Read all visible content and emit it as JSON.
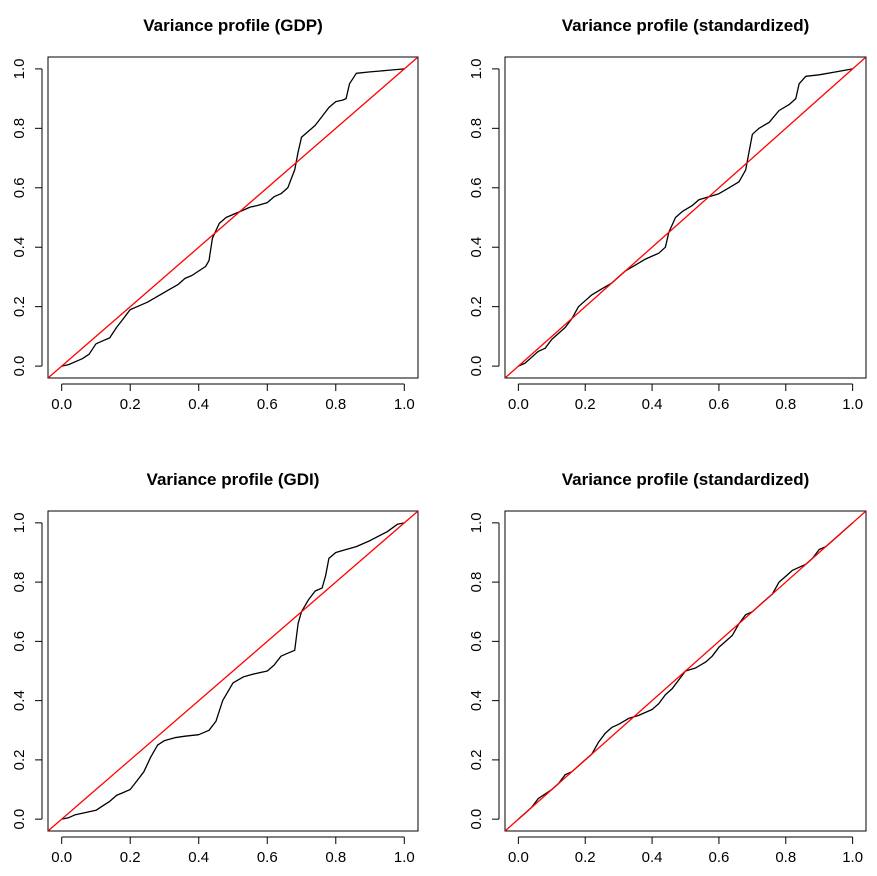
{
  "chart_data": [
    {
      "type": "line",
      "title": "Variance profile (GDP)",
      "xlabel": "",
      "ylabel": "",
      "xlim": [
        0,
        1
      ],
      "ylim": [
        0,
        1
      ],
      "x_ticks": [
        "0.0",
        "0.2",
        "0.4",
        "0.6",
        "0.8",
        "1.0"
      ],
      "y_ticks": [
        "0.0",
        "0.2",
        "0.4",
        "0.6",
        "0.8",
        "1.0"
      ],
      "grid": false,
      "series": [
        {
          "color": "#000000",
          "points": [
            [
              0,
              0
            ],
            [
              0.02,
              0.005
            ],
            [
              0.04,
              0.015
            ],
            [
              0.06,
              0.025
            ],
            [
              0.08,
              0.04
            ],
            [
              0.1,
              0.075
            ],
            [
              0.12,
              0.085
            ],
            [
              0.14,
              0.095
            ],
            [
              0.16,
              0.13
            ],
            [
              0.18,
              0.16
            ],
            [
              0.2,
              0.19
            ],
            [
              0.22,
              0.2
            ],
            [
              0.25,
              0.215
            ],
            [
              0.28,
              0.235
            ],
            [
              0.31,
              0.255
            ],
            [
              0.34,
              0.275
            ],
            [
              0.36,
              0.295
            ],
            [
              0.38,
              0.305
            ],
            [
              0.4,
              0.32
            ],
            [
              0.42,
              0.335
            ],
            [
              0.43,
              0.355
            ],
            [
              0.44,
              0.43
            ],
            [
              0.46,
              0.48
            ],
            [
              0.48,
              0.5
            ],
            [
              0.5,
              0.51
            ],
            [
              0.52,
              0.52
            ],
            [
              0.55,
              0.535
            ],
            [
              0.57,
              0.54
            ],
            [
              0.6,
              0.55
            ],
            [
              0.62,
              0.57
            ],
            [
              0.64,
              0.58
            ],
            [
              0.66,
              0.6
            ],
            [
              0.67,
              0.63
            ],
            [
              0.68,
              0.66
            ],
            [
              0.69,
              0.72
            ],
            [
              0.7,
              0.77
            ],
            [
              0.72,
              0.79
            ],
            [
              0.74,
              0.81
            ],
            [
              0.76,
              0.84
            ],
            [
              0.78,
              0.87
            ],
            [
              0.8,
              0.89
            ],
            [
              0.82,
              0.895
            ],
            [
              0.83,
              0.9
            ],
            [
              0.84,
              0.95
            ],
            [
              0.86,
              0.985
            ],
            [
              0.9,
              0.99
            ],
            [
              0.95,
              0.995
            ],
            [
              1,
              1
            ]
          ]
        },
        {
          "color": "#ff0000",
          "points": [
            [
              -0.04,
              -0.04
            ],
            [
              1.04,
              1.04
            ]
          ]
        }
      ]
    },
    {
      "type": "line",
      "title": "Variance profile (standardized)",
      "xlabel": "",
      "ylabel": "",
      "xlim": [
        0,
        1
      ],
      "ylim": [
        0,
        1
      ],
      "x_ticks": [
        "0.0",
        "0.2",
        "0.4",
        "0.6",
        "0.8",
        "1.0"
      ],
      "y_ticks": [
        "0.0",
        "0.2",
        "0.4",
        "0.6",
        "0.8",
        "1.0"
      ],
      "grid": false,
      "series": [
        {
          "color": "#000000",
          "points": [
            [
              0,
              0
            ],
            [
              0.02,
              0.01
            ],
            [
              0.04,
              0.03
            ],
            [
              0.06,
              0.05
            ],
            [
              0.08,
              0.06
            ],
            [
              0.1,
              0.09
            ],
            [
              0.12,
              0.11
            ],
            [
              0.14,
              0.13
            ],
            [
              0.16,
              0.16
            ],
            [
              0.18,
              0.2
            ],
            [
              0.2,
              0.22
            ],
            [
              0.22,
              0.24
            ],
            [
              0.25,
              0.26
            ],
            [
              0.28,
              0.28
            ],
            [
              0.3,
              0.3
            ],
            [
              0.32,
              0.32
            ],
            [
              0.35,
              0.34
            ],
            [
              0.38,
              0.36
            ],
            [
              0.4,
              0.37
            ],
            [
              0.42,
              0.38
            ],
            [
              0.44,
              0.4
            ],
            [
              0.45,
              0.45
            ],
            [
              0.47,
              0.5
            ],
            [
              0.49,
              0.52
            ],
            [
              0.52,
              0.54
            ],
            [
              0.54,
              0.56
            ],
            [
              0.57,
              0.57
            ],
            [
              0.6,
              0.58
            ],
            [
              0.63,
              0.6
            ],
            [
              0.66,
              0.62
            ],
            [
              0.68,
              0.66
            ],
            [
              0.69,
              0.72
            ],
            [
              0.7,
              0.78
            ],
            [
              0.72,
              0.8
            ],
            [
              0.75,
              0.82
            ],
            [
              0.78,
              0.86
            ],
            [
              0.81,
              0.88
            ],
            [
              0.83,
              0.9
            ],
            [
              0.84,
              0.95
            ],
            [
              0.86,
              0.975
            ],
            [
              0.9,
              0.98
            ],
            [
              0.95,
              0.99
            ],
            [
              1,
              1
            ]
          ]
        },
        {
          "color": "#ff0000",
          "points": [
            [
              -0.04,
              -0.04
            ],
            [
              1.04,
              1.04
            ]
          ]
        }
      ]
    },
    {
      "type": "line",
      "title": "Variance profile (GDI)",
      "xlabel": "",
      "ylabel": "",
      "xlim": [
        0,
        1
      ],
      "ylim": [
        0,
        1
      ],
      "x_ticks": [
        "0.0",
        "0.2",
        "0.4",
        "0.6",
        "0.8",
        "1.0"
      ],
      "y_ticks": [
        "0.0",
        "0.2",
        "0.4",
        "0.6",
        "0.8",
        "1.0"
      ],
      "grid": false,
      "series": [
        {
          "color": "#000000",
          "points": [
            [
              0,
              0
            ],
            [
              0.02,
              0.005
            ],
            [
              0.04,
              0.015
            ],
            [
              0.06,
              0.02
            ],
            [
              0.08,
              0.025
            ],
            [
              0.1,
              0.03
            ],
            [
              0.12,
              0.045
            ],
            [
              0.14,
              0.06
            ],
            [
              0.16,
              0.08
            ],
            [
              0.18,
              0.09
            ],
            [
              0.2,
              0.1
            ],
            [
              0.22,
              0.13
            ],
            [
              0.24,
              0.16
            ],
            [
              0.26,
              0.21
            ],
            [
              0.28,
              0.25
            ],
            [
              0.3,
              0.265
            ],
            [
              0.33,
              0.275
            ],
            [
              0.36,
              0.28
            ],
            [
              0.4,
              0.285
            ],
            [
              0.43,
              0.3
            ],
            [
              0.45,
              0.33
            ],
            [
              0.47,
              0.4
            ],
            [
              0.5,
              0.46
            ],
            [
              0.53,
              0.48
            ],
            [
              0.56,
              0.49
            ],
            [
              0.6,
              0.5
            ],
            [
              0.62,
              0.52
            ],
            [
              0.64,
              0.55
            ],
            [
              0.66,
              0.56
            ],
            [
              0.68,
              0.57
            ],
            [
              0.69,
              0.66
            ],
            [
              0.7,
              0.7
            ],
            [
              0.72,
              0.74
            ],
            [
              0.74,
              0.77
            ],
            [
              0.76,
              0.78
            ],
            [
              0.77,
              0.82
            ],
            [
              0.78,
              0.88
            ],
            [
              0.8,
              0.9
            ],
            [
              0.83,
              0.91
            ],
            [
              0.86,
              0.92
            ],
            [
              0.9,
              0.94
            ],
            [
              0.95,
              0.97
            ],
            [
              0.98,
              0.995
            ],
            [
              1,
              1
            ]
          ]
        },
        {
          "color": "#ff0000",
          "points": [
            [
              -0.04,
              -0.04
            ],
            [
              1.04,
              1.04
            ]
          ]
        }
      ]
    },
    {
      "type": "line",
      "title": "Variance profile (standardized)",
      "xlabel": "",
      "ylabel": "",
      "xlim": [
        0,
        1
      ],
      "ylim": [
        0,
        1
      ],
      "x_ticks": [
        "0.0",
        "0.2",
        "0.4",
        "0.6",
        "0.8",
        "1.0"
      ],
      "y_ticks": [
        "0.0",
        "0.2",
        "0.4",
        "0.6",
        "0.8",
        "1.0"
      ],
      "grid": false,
      "series": [
        {
          "color": "#000000",
          "points": [
            [
              0,
              0
            ],
            [
              0.02,
              0.02
            ],
            [
              0.04,
              0.04
            ],
            [
              0.06,
              0.07
            ],
            [
              0.08,
              0.085
            ],
            [
              0.1,
              0.1
            ],
            [
              0.12,
              0.12
            ],
            [
              0.14,
              0.15
            ],
            [
              0.16,
              0.16
            ],
            [
              0.18,
              0.18
            ],
            [
              0.2,
              0.2
            ],
            [
              0.22,
              0.22
            ],
            [
              0.24,
              0.26
            ],
            [
              0.26,
              0.29
            ],
            [
              0.28,
              0.31
            ],
            [
              0.3,
              0.32
            ],
            [
              0.33,
              0.34
            ],
            [
              0.36,
              0.35
            ],
            [
              0.4,
              0.37
            ],
            [
              0.42,
              0.39
            ],
            [
              0.44,
              0.42
            ],
            [
              0.46,
              0.44
            ],
            [
              0.48,
              0.47
            ],
            [
              0.5,
              0.5
            ],
            [
              0.53,
              0.51
            ],
            [
              0.56,
              0.53
            ],
            [
              0.58,
              0.55
            ],
            [
              0.6,
              0.58
            ],
            [
              0.62,
              0.6
            ],
            [
              0.64,
              0.62
            ],
            [
              0.66,
              0.66
            ],
            [
              0.68,
              0.69
            ],
            [
              0.7,
              0.7
            ],
            [
              0.72,
              0.72
            ],
            [
              0.74,
              0.74
            ],
            [
              0.76,
              0.76
            ],
            [
              0.78,
              0.8
            ],
            [
              0.8,
              0.82
            ],
            [
              0.82,
              0.84
            ],
            [
              0.84,
              0.85
            ],
            [
              0.86,
              0.86
            ],
            [
              0.88,
              0.88
            ],
            [
              0.9,
              0.91
            ],
            [
              0.92,
              0.92
            ],
            [
              0.94,
              0.94
            ],
            [
              0.96,
              0.96
            ],
            [
              0.98,
              0.98
            ],
            [
              1,
              1
            ]
          ]
        },
        {
          "color": "#ff0000",
          "points": [
            [
              -0.04,
              -0.04
            ],
            [
              1.04,
              1.04
            ]
          ]
        }
      ]
    }
  ]
}
